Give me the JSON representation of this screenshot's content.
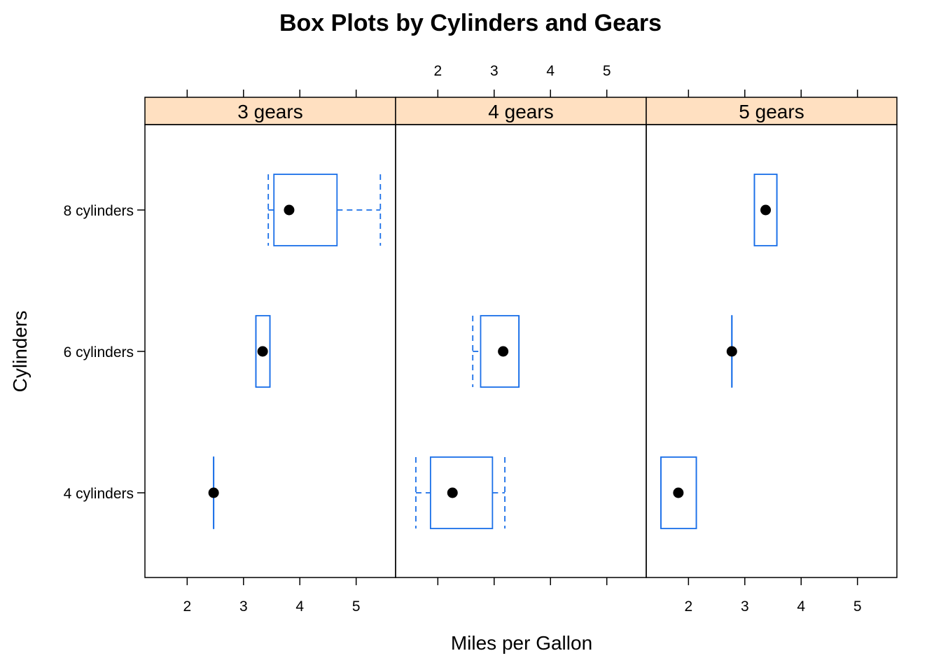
{
  "chart_data": {
    "type": "box",
    "title": "Box Plots by Cylinders and Gears",
    "xlabel": "Miles per Gallon",
    "ylabel": "Cylinders",
    "xlim": [
      1.25,
      5.7
    ],
    "x_ticks": [
      2,
      3,
      4,
      5
    ],
    "x_tick_labels": [
      "2",
      "3",
      "4",
      "5"
    ],
    "panels": [
      "3 gears",
      "4 gears",
      "5 gears"
    ],
    "rows": [
      "4 cylinders",
      "6 cylinders",
      "8 cylinders"
    ],
    "strip_color": "#ffe0c1",
    "box_color": "#1a6fe8",
    "point_color": "#000000",
    "boxes": [
      {
        "panel": "3 gears",
        "row": "4 cylinders",
        "min": 2.47,
        "q1": 2.47,
        "median": 2.47,
        "q3": 2.47,
        "max": 2.47
      },
      {
        "panel": "3 gears",
        "row": "6 cylinders",
        "min": 3.22,
        "q1": 3.22,
        "median": 3.34,
        "q3": 3.47,
        "max": 3.47
      },
      {
        "panel": "3 gears",
        "row": "8 cylinders",
        "min": 3.44,
        "q1": 3.54,
        "median": 3.81,
        "q3": 4.66,
        "max": 5.43
      },
      {
        "panel": "4 gears",
        "row": "4 cylinders",
        "min": 1.61,
        "q1": 1.87,
        "median": 2.26,
        "q3": 2.97,
        "max": 3.19
      },
      {
        "panel": "4 gears",
        "row": "6 cylinders",
        "min": 2.62,
        "q1": 2.76,
        "median": 3.16,
        "q3": 3.44,
        "max": 3.44
      },
      {
        "panel": "5 gears",
        "row": "4 cylinders",
        "min": 1.51,
        "q1": 1.51,
        "median": 1.82,
        "q3": 2.14,
        "max": 2.14
      },
      {
        "panel": "5 gears",
        "row": "6 cylinders",
        "min": 2.77,
        "q1": 2.77,
        "median": 2.77,
        "q3": 2.77,
        "max": 2.77
      },
      {
        "panel": "5 gears",
        "row": "8 cylinders",
        "min": 3.17,
        "q1": 3.17,
        "median": 3.37,
        "q3": 3.57,
        "max": 3.57
      }
    ]
  }
}
